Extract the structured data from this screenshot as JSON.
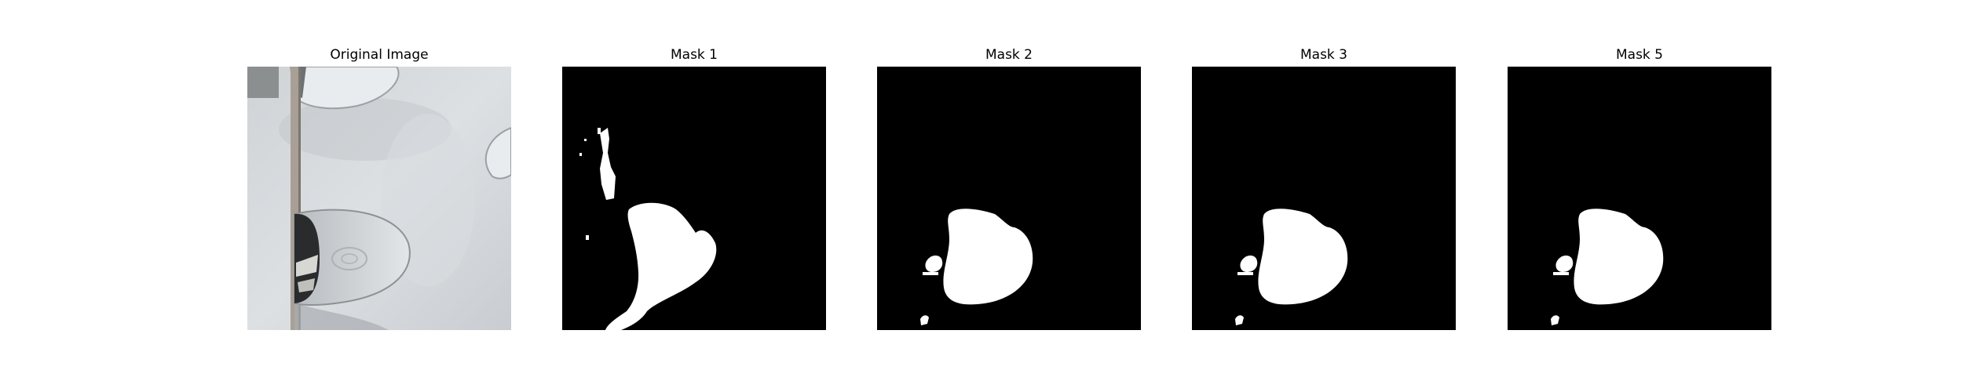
{
  "panels": [
    {
      "title": "Original Image"
    },
    {
      "title": "Mask 1"
    },
    {
      "title": "Mask 2"
    },
    {
      "title": "Mask 3"
    },
    {
      "title": "Mask 5"
    }
  ],
  "colors": {
    "mask_background": "#000000",
    "mask_foreground": "#ffffff",
    "photo_base": "#d6dadd"
  }
}
